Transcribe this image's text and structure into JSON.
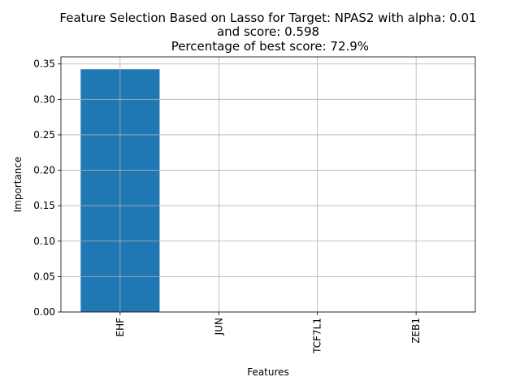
{
  "chart_data": {
    "type": "bar",
    "title_lines": [
      "Feature Selection Based on Lasso for Target: NPAS2 with alpha: 0.01",
      "and score: 0.598",
      " Percentage of best score: 72.9%"
    ],
    "xlabel": "Features",
    "ylabel": "Importance",
    "categories": [
      "EHF",
      "JUN",
      "TCF7L1",
      "ZEB1"
    ],
    "values": [
      0.3425,
      0.0,
      0.0,
      0.0
    ],
    "ylim": [
      0,
      0.36
    ],
    "yticks": [
      0.0,
      0.05,
      0.1,
      0.15,
      0.2,
      0.25,
      0.3,
      0.35
    ],
    "ytick_labels": [
      "0.00",
      "0.05",
      "0.10",
      "0.15",
      "0.20",
      "0.25",
      "0.30",
      "0.35"
    ],
    "grid": true,
    "bar_color": "#1f77b4",
    "grid_color": "#b0b0b0"
  }
}
